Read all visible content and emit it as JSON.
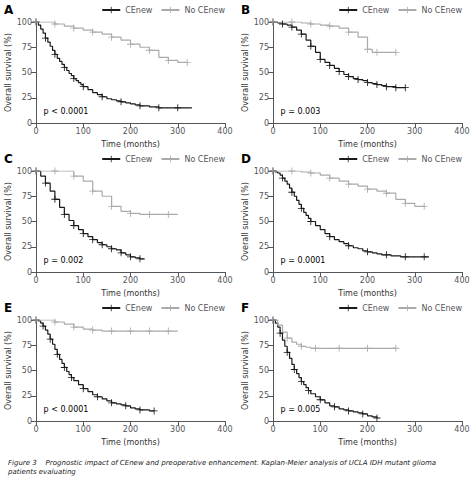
{
  "caption": "Figure 3    Prognostic impact of CEnew and preoperative enhancement. Kaplan-Meier analysis of UCLA IDH mutant glioma patients evaluating",
  "chart_data": [
    {
      "type": "step",
      "title": "A",
      "annotations": [
        "p < 0.0001"
      ],
      "xlabel": "Time (months)",
      "ylabel": "Overall survival (%)",
      "xlim": [
        0,
        400
      ],
      "ylim": [
        0,
        100
      ],
      "xticks": [
        0,
        100,
        200,
        300,
        400
      ],
      "yticks": [
        0,
        25,
        50,
        75,
        100
      ],
      "grid": false,
      "legend": "upper right",
      "marker": "plus",
      "series": [
        {
          "name": "CEnew",
          "color": "#1a1a1a",
          "x": [
            0,
            5,
            10,
            15,
            20,
            25,
            30,
            35,
            40,
            45,
            50,
            55,
            60,
            65,
            70,
            75,
            80,
            85,
            90,
            95,
            100,
            110,
            120,
            130,
            140,
            150,
            160,
            170,
            180,
            190,
            200,
            210,
            220,
            230,
            240,
            250,
            260,
            270,
            280,
            290,
            300,
            310,
            320,
            330
          ],
          "values": [
            100,
            97,
            93,
            89,
            84,
            80,
            76,
            72,
            68,
            64,
            61,
            58,
            55,
            52,
            49,
            47,
            44,
            42,
            40,
            38,
            36,
            33,
            30,
            28,
            26,
            24,
            23,
            22,
            21,
            20,
            19,
            18,
            17,
            17,
            16,
            16,
            15,
            15,
            15,
            15,
            15,
            15,
            15,
            15
          ]
        },
        {
          "name": "No CEnew",
          "color": "#aaaaaa",
          "x": [
            0,
            20,
            40,
            60,
            80,
            100,
            120,
            140,
            160,
            180,
            200,
            220,
            240,
            260,
            280,
            300,
            320
          ],
          "values": [
            100,
            100,
            98,
            96,
            94,
            92,
            90,
            88,
            85,
            82,
            78,
            75,
            72,
            65,
            62,
            60,
            60
          ]
        }
      ]
    },
    {
      "type": "step",
      "title": "B",
      "annotations": [
        "p = 0.003"
      ],
      "xlabel": "Time (months)",
      "ylabel": "Overall survival (%)",
      "xlim": [
        0,
        400
      ],
      "ylim": [
        0,
        100
      ],
      "xticks": [
        0,
        100,
        200,
        300,
        400
      ],
      "yticks": [
        0,
        25,
        50,
        75,
        100
      ],
      "grid": false,
      "legend": "upper right",
      "marker": "plus",
      "series": [
        {
          "name": "CEnew",
          "color": "#1a1a1a",
          "x": [
            0,
            10,
            20,
            30,
            40,
            50,
            60,
            70,
            80,
            90,
            100,
            110,
            120,
            130,
            140,
            150,
            160,
            170,
            180,
            190,
            200,
            210,
            220,
            230,
            240,
            250,
            260,
            270,
            280
          ],
          "values": [
            100,
            99,
            98,
            97,
            95,
            92,
            88,
            82,
            76,
            70,
            63,
            60,
            57,
            54,
            51,
            48,
            46,
            44,
            43,
            42,
            40,
            39,
            38,
            37,
            36,
            36,
            35,
            35,
            35
          ]
        },
        {
          "name": "No CEnew",
          "color": "#aaaaaa",
          "x": [
            0,
            20,
            40,
            60,
            80,
            100,
            120,
            140,
            160,
            180,
            200,
            210,
            220,
            240,
            260
          ],
          "values": [
            100,
            100,
            100,
            99,
            98,
            97,
            96,
            94,
            90,
            85,
            73,
            70,
            70,
            70,
            70
          ]
        }
      ]
    },
    {
      "type": "step",
      "title": "C",
      "annotations": [
        "p = 0.002"
      ],
      "xlabel": "Time (months)",
      "ylabel": "Overall survival (%)",
      "xlim": [
        0,
        400
      ],
      "ylim": [
        0,
        100
      ],
      "xticks": [
        0,
        100,
        200,
        300,
        400
      ],
      "yticks": [
        0,
        25,
        50,
        75,
        100
      ],
      "grid": false,
      "legend": "upper right",
      "marker": "plus",
      "series": [
        {
          "name": "CEnew",
          "color": "#1a1a1a",
          "x": [
            0,
            10,
            20,
            30,
            40,
            50,
            60,
            70,
            80,
            90,
            100,
            110,
            120,
            130,
            140,
            150,
            160,
            170,
            180,
            190,
            200,
            210,
            220,
            230
          ],
          "values": [
            100,
            95,
            88,
            80,
            72,
            64,
            57,
            51,
            46,
            42,
            38,
            35,
            32,
            29,
            27,
            25,
            23,
            22,
            19,
            17,
            15,
            14,
            13,
            13
          ]
        },
        {
          "name": "No CEnew",
          "color": "#aaaaaa",
          "x": [
            0,
            20,
            40,
            60,
            80,
            100,
            120,
            140,
            160,
            180,
            200,
            220,
            240,
            260,
            280,
            300
          ],
          "values": [
            100,
            100,
            100,
            100,
            95,
            90,
            80,
            75,
            65,
            60,
            58,
            57,
            57,
            57,
            57,
            57
          ]
        }
      ]
    },
    {
      "type": "step",
      "title": "D",
      "annotations": [
        "p = 0.0001"
      ],
      "xlabel": "Time (months)",
      "ylabel": "Overall survival (%)",
      "xlim": [
        0,
        400
      ],
      "ylim": [
        0,
        100
      ],
      "xticks": [
        0,
        100,
        200,
        300,
        400
      ],
      "yticks": [
        0,
        25,
        50,
        75,
        100
      ],
      "grid": false,
      "legend": "upper right",
      "marker": "plus",
      "series": [
        {
          "name": "CEnew",
          "color": "#1a1a1a",
          "x": [
            0,
            5,
            10,
            15,
            20,
            25,
            30,
            35,
            40,
            45,
            50,
            55,
            60,
            65,
            70,
            75,
            80,
            90,
            100,
            110,
            120,
            130,
            140,
            150,
            160,
            170,
            180,
            190,
            200,
            210,
            220,
            230,
            240,
            250,
            260,
            270,
            280,
            290,
            300,
            310,
            320,
            330
          ],
          "values": [
            100,
            99,
            98,
            96,
            93,
            90,
            87,
            83,
            79,
            75,
            71,
            67,
            63,
            59,
            56,
            53,
            50,
            46,
            42,
            38,
            35,
            32,
            30,
            28,
            26,
            24,
            23,
            21,
            20,
            19,
            18,
            17,
            17,
            16,
            16,
            15,
            15,
            15,
            15,
            15,
            15,
            15
          ]
        },
        {
          "name": "No CEnew",
          "color": "#aaaaaa",
          "x": [
            0,
            20,
            40,
            60,
            80,
            100,
            120,
            140,
            160,
            180,
            200,
            220,
            240,
            260,
            280,
            300,
            320
          ],
          "values": [
            100,
            100,
            100,
            99,
            98,
            96,
            93,
            90,
            87,
            85,
            82,
            80,
            78,
            72,
            68,
            65,
            65
          ]
        }
      ]
    },
    {
      "type": "step",
      "title": "E",
      "annotations": [
        "p < 0.0001"
      ],
      "xlabel": "Time (months)",
      "ylabel": "Overall survival (%)",
      "xlim": [
        0,
        400
      ],
      "ylim": [
        0,
        100
      ],
      "xticks": [
        0,
        100,
        200,
        300,
        400
      ],
      "yticks": [
        0,
        25,
        50,
        75,
        100
      ],
      "grid": false,
      "legend": "upper right",
      "marker": "plus",
      "series": [
        {
          "name": "CEnew",
          "color": "#1a1a1a",
          "x": [
            0,
            5,
            10,
            15,
            20,
            25,
            30,
            35,
            40,
            45,
            50,
            55,
            60,
            65,
            70,
            75,
            80,
            90,
            100,
            110,
            120,
            130,
            140,
            150,
            160,
            170,
            180,
            190,
            200,
            210,
            220,
            230,
            240,
            250
          ],
          "values": [
            100,
            99,
            97,
            94,
            90,
            86,
            81,
            76,
            71,
            66,
            61,
            57,
            53,
            49,
            46,
            43,
            40,
            36,
            32,
            29,
            26,
            24,
            22,
            20,
            18,
            17,
            16,
            15,
            13,
            12,
            11,
            11,
            10,
            10
          ]
        },
        {
          "name": "No CEnew",
          "color": "#aaaaaa",
          "x": [
            0,
            20,
            40,
            60,
            80,
            100,
            120,
            140,
            160,
            180,
            200,
            220,
            240,
            260,
            280,
            300
          ],
          "values": [
            100,
            100,
            98,
            96,
            93,
            91,
            90,
            89,
            89,
            89,
            89,
            89,
            89,
            89,
            89,
            89
          ]
        }
      ]
    },
    {
      "type": "step",
      "title": "F",
      "annotations": [
        "p = 0.005"
      ],
      "xlabel": "Time (months)",
      "ylabel": "Overall survival (%)",
      "xlim": [
        0,
        400
      ],
      "ylim": [
        0,
        100
      ],
      "xticks": [
        0,
        100,
        200,
        300,
        400
      ],
      "yticks": [
        0,
        25,
        50,
        75,
        100
      ],
      "grid": false,
      "legend": "upper right",
      "marker": "plus",
      "series": [
        {
          "name": "CEnew",
          "color": "#1a1a1a",
          "x": [
            0,
            5,
            10,
            15,
            20,
            25,
            30,
            35,
            40,
            45,
            50,
            55,
            60,
            65,
            70,
            75,
            80,
            90,
            100,
            110,
            120,
            130,
            140,
            150,
            160,
            170,
            180,
            190,
            200,
            210,
            220
          ],
          "values": [
            100,
            97,
            93,
            87,
            80,
            74,
            68,
            62,
            56,
            51,
            47,
            43,
            39,
            36,
            33,
            30,
            27,
            24,
            21,
            18,
            15,
            14,
            12,
            11,
            10,
            9,
            8,
            7,
            5,
            4,
            3
          ]
        },
        {
          "name": "No CEnew",
          "color": "#aaaaaa",
          "x": [
            0,
            10,
            20,
            30,
            40,
            50,
            60,
            70,
            80,
            90,
            100,
            120,
            140,
            160,
            180,
            200,
            220,
            240,
            260
          ],
          "values": [
            100,
            95,
            88,
            82,
            78,
            76,
            74,
            73,
            72,
            72,
            72,
            72,
            72,
            72,
            72,
            72,
            72,
            72,
            72
          ]
        }
      ]
    }
  ]
}
